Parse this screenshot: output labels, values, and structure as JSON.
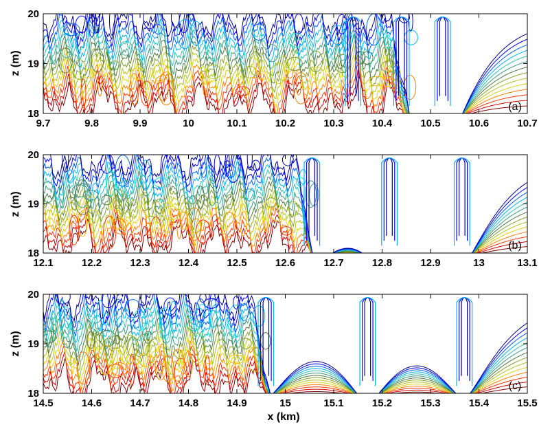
{
  "chart_data": [
    {
      "type": "contour",
      "panel_label": "(a)",
      "xlabel": "",
      "ylabel": "z (m)",
      "xlim": [
        9.7,
        10.7
      ],
      "ylim": [
        18,
        20
      ],
      "xticks": [
        "9.7",
        "9.8",
        "9.9",
        "10",
        "10.1",
        "10.2",
        "10.3",
        "10.4",
        "10.5",
        "10.6",
        "10.7"
      ],
      "yticks": [
        "18",
        "19",
        "20"
      ],
      "turbulent_region_x": [
        9.7,
        10.46
      ],
      "wave_troughs_x": [
        10.34,
        10.44,
        10.525
      ],
      "contour_count": 14
    },
    {
      "type": "contour",
      "panel_label": "(b)",
      "xlabel": "",
      "ylabel": "z (m)",
      "xlim": [
        12.1,
        13.1
      ],
      "ylim": [
        18,
        20
      ],
      "xticks": [
        "12.1",
        "12.2",
        "12.3",
        "12.4",
        "12.5",
        "12.6",
        "12.7",
        "12.8",
        "12.9",
        "13",
        "13.1"
      ],
      "yticks": [
        "18",
        "19",
        "20"
      ],
      "turbulent_region_x": [
        12.1,
        12.66
      ],
      "wave_troughs_x": [
        12.655,
        12.815,
        12.965
      ],
      "contour_count": 14
    },
    {
      "type": "contour",
      "panel_label": "(c)",
      "xlabel": "x (km)",
      "ylabel": "z (m)",
      "xlim": [
        14.5,
        15.5
      ],
      "ylim": [
        18,
        20
      ],
      "xticks": [
        "14.5",
        "14.6",
        "14.7",
        "14.8",
        "14.9",
        "15",
        "15.1",
        "15.2",
        "15.3",
        "15.4",
        "15.5"
      ],
      "yticks": [
        "18",
        "19",
        "20"
      ],
      "turbulent_region_x": [
        14.5,
        14.97
      ],
      "wave_troughs_x": [
        14.96,
        15.17,
        15.37
      ],
      "contour_count": 14
    }
  ],
  "colormap": [
    "#00008f",
    "#0000ff",
    "#0060ff",
    "#00b0ff",
    "#10e0e0",
    "#30c0b0",
    "#3a9a80",
    "#507a40",
    "#80a030",
    "#b0c020",
    "#e0d010",
    "#ffc000",
    "#ff8000",
    "#ff3000",
    "#d00000",
    "#800000"
  ]
}
